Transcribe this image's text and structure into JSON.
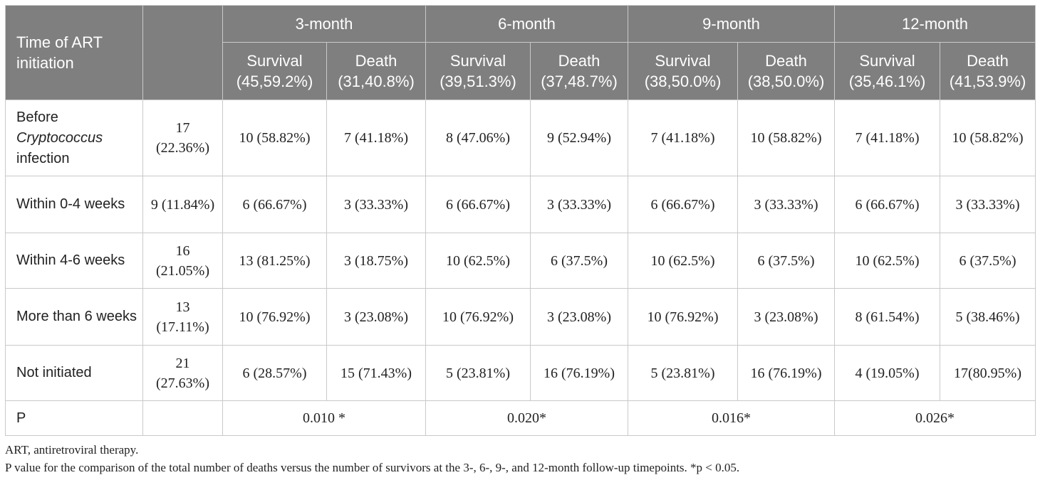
{
  "table": {
    "header": {
      "label": "Time of ART initiation",
      "periods": [
        "3-month",
        "6-month",
        "9-month",
        "12-month"
      ],
      "subheaders": [
        {
          "survival": "Survival (45,59.2%)",
          "death": "Death (31,40.8%)"
        },
        {
          "survival": "Survival (39,51.3%)",
          "death": "Death (37,48.7%)"
        },
        {
          "survival": "Survival (38,50.0%)",
          "death": "Death (38,50.0%)"
        },
        {
          "survival": "Survival (35,46.1%)",
          "death": "Death (41,53.9%)"
        }
      ]
    },
    "rows": [
      {
        "label_pre": "Before",
        "label_italic": "Cryptococcus",
        "label_post": "infection",
        "total": "17 (22.36%)",
        "cells": [
          "10 (58.82%)",
          "7 (41.18%)",
          "8 (47.06%)",
          "9 (52.94%)",
          "7 (41.18%)",
          "10 (58.82%)",
          "7 (41.18%)",
          "10 (58.82%)"
        ]
      },
      {
        "label": "Within 0-4 weeks",
        "total": "9 (11.84%)",
        "cells": [
          "6 (66.67%)",
          "3 (33.33%)",
          "6 (66.67%)",
          "3 (33.33%)",
          "6 (66.67%)",
          "3 (33.33%)",
          "6 (66.67%)",
          "3 (33.33%)"
        ]
      },
      {
        "label": "Within 4-6 weeks",
        "total": "16 (21.05%)",
        "cells": [
          "13 (81.25%)",
          "3 (18.75%)",
          "10 (62.5%)",
          "6 (37.5%)",
          "10 (62.5%)",
          "6 (37.5%)",
          "10 (62.5%)",
          "6 (37.5%)"
        ]
      },
      {
        "label": "More than 6 weeks",
        "total": "13 (17.11%)",
        "cells": [
          "10 (76.92%)",
          "3 (23.08%)",
          "10 (76.92%)",
          "3 (23.08%)",
          "10 (76.92%)",
          "3 (23.08%)",
          "8 (61.54%)",
          "5 (38.46%)"
        ]
      },
      {
        "label": "Not initiated",
        "total": "21 (27.63%)",
        "cells": [
          "6 (28.57%)",
          "15 (71.43%)",
          "5 (23.81%)",
          "16 (76.19%)",
          "5 (23.81%)",
          "16 (76.19%)",
          "4 (19.05%)",
          "17(80.95%)"
        ]
      }
    ],
    "p_row": {
      "label": "P",
      "values": [
        "0.010 *",
        "0.020*",
        "0.016*",
        "0.026*"
      ]
    }
  },
  "footnotes": [
    "ART, antiretroviral therapy.",
    "P value for the comparison of the total number of deaths versus the number of survivors at the 3-, 6-, 9-, and 12-month follow-up timepoints. *p < 0.05."
  ],
  "colors": {
    "header_bg": "#7f7f7f",
    "header_text": "#ffffff",
    "border": "#c9c9c9",
    "body_text": "#222222"
  }
}
